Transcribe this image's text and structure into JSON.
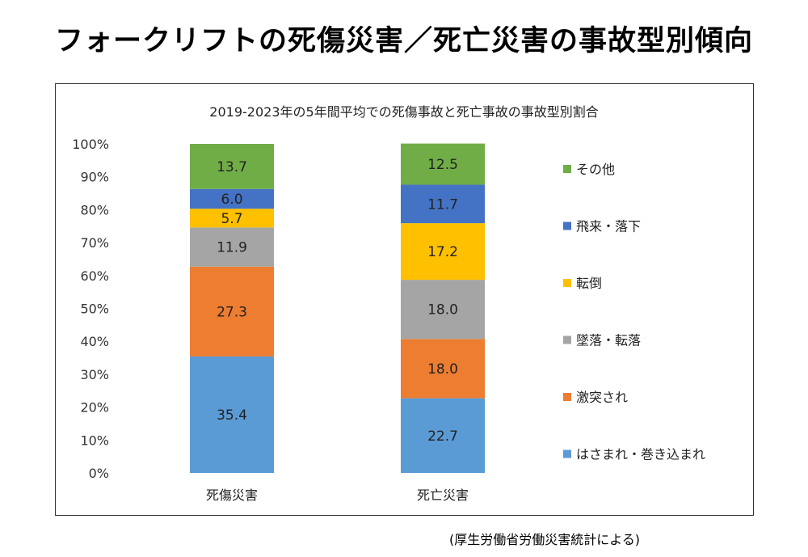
{
  "page": {
    "title": "フォークリフトの死傷災害／死亡災害の事故型別傾向",
    "source_note": "(厚生労働省労働災害統計による)"
  },
  "chart_data": {
    "type": "bar",
    "stacked": true,
    "title": "2019-2023年の5年間平均での死傷事故と死亡事故の事故型別割合",
    "categories": [
      "死傷災害",
      "死亡災害"
    ],
    "y_ticks": [
      "0%",
      "10%",
      "20%",
      "30%",
      "40%",
      "50%",
      "60%",
      "70%",
      "80%",
      "90%",
      "100%"
    ],
    "ylim": [
      0,
      100
    ],
    "y_unit": "%",
    "legend_position": "right",
    "grid": false,
    "series": [
      {
        "name": "はさまれ・巻き込まれ",
        "color": "#5B9BD5",
        "values": [
          35.4,
          22.7
        ]
      },
      {
        "name": "激突され",
        "color": "#ED7D31",
        "values": [
          27.3,
          18.0
        ]
      },
      {
        "name": "墜落・転落",
        "color": "#A5A5A5",
        "values": [
          11.9,
          18.0
        ]
      },
      {
        "name": "転倒",
        "color": "#FFC000",
        "values": [
          5.7,
          17.2
        ]
      },
      {
        "name": "飛来・落下",
        "color": "#4472C4",
        "values": [
          6.0,
          11.7
        ]
      },
      {
        "name": "その他",
        "color": "#70AD47",
        "values": [
          13.7,
          12.5
        ]
      }
    ]
  }
}
